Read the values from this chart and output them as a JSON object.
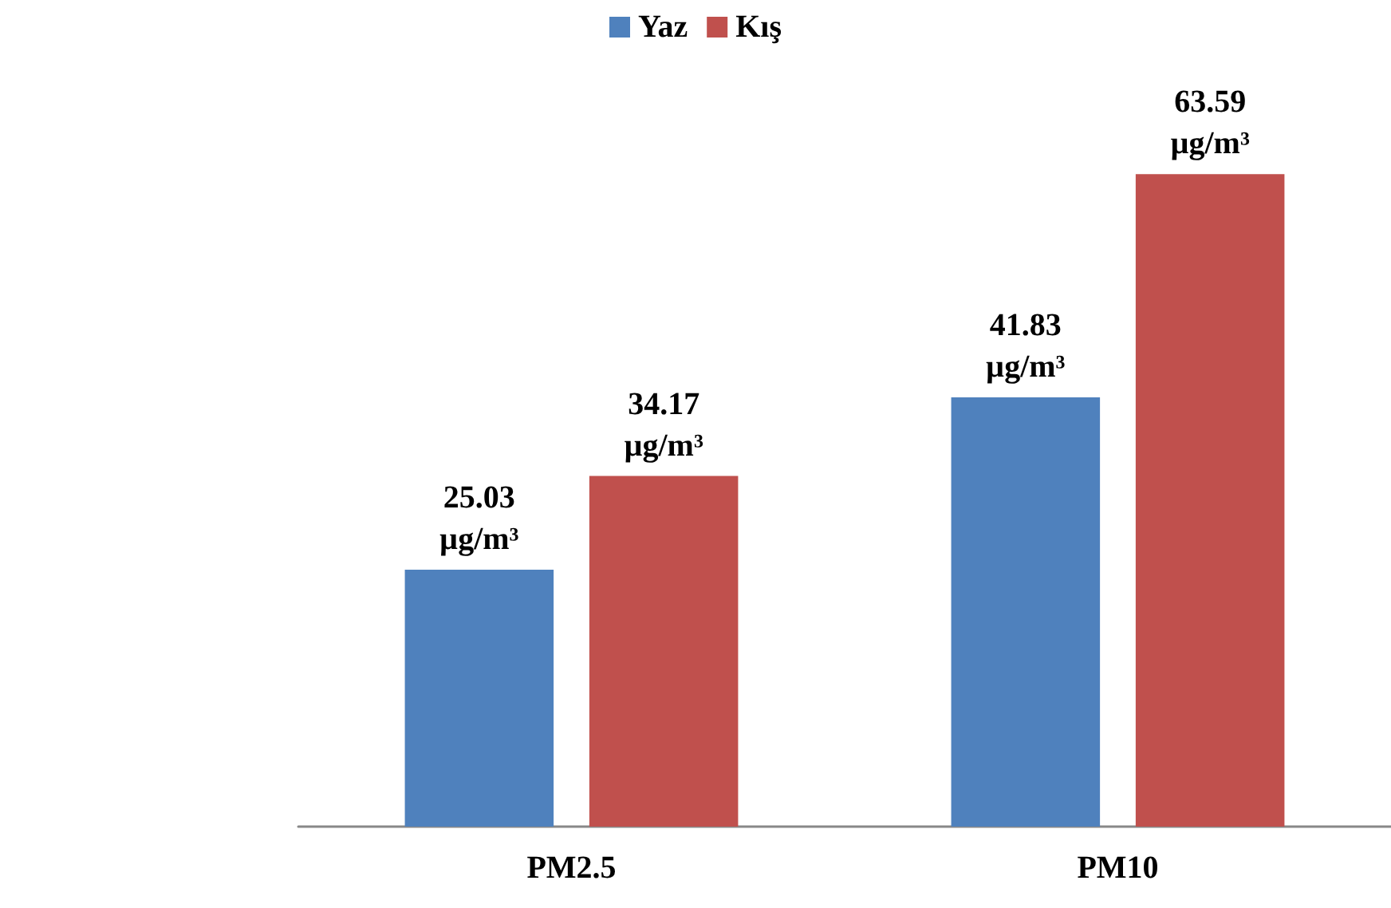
{
  "chart_data": {
    "type": "bar",
    "categories": [
      "PM2.5",
      "PM10"
    ],
    "legend": "top",
    "series": [
      {
        "name": "Yaz",
        "color": "#4f81bd",
        "values": [
          25.03,
          41.83
        ],
        "value_labels": [
          "25.03 µg/m³",
          "41.83 µg/m³"
        ]
      },
      {
        "name": "Kış",
        "color": "#c0504d",
        "values": [
          34.17,
          63.59
        ],
        "value_labels": [
          "34.17 µg/m³",
          "63.59 µg/m³"
        ]
      }
    ]
  }
}
